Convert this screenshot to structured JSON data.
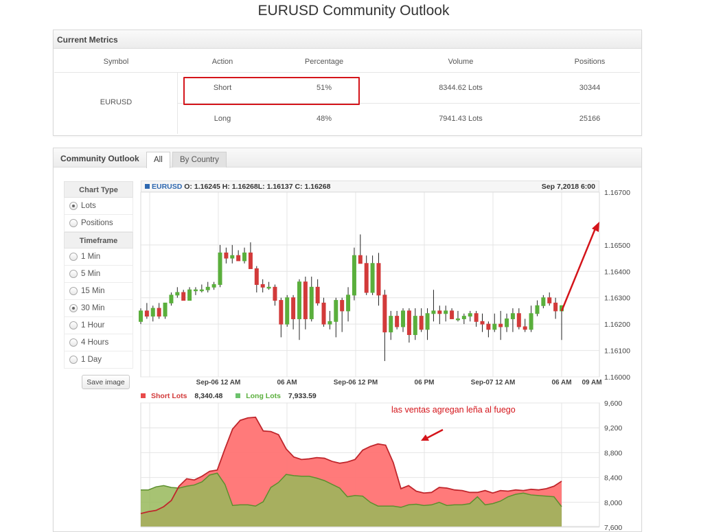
{
  "page": {
    "title": "EURUSD Community Outlook"
  },
  "metrics": {
    "header": "Current Metrics",
    "columns": [
      "Symbol",
      "Action",
      "Percentage",
      "Volume",
      "Positions"
    ],
    "symbol": "EURUSD",
    "rows": [
      {
        "action": "Short",
        "percentage": "51%",
        "volume": "8344.62 Lots",
        "positions": "30344"
      },
      {
        "action": "Long",
        "percentage": "48%",
        "volume": "7941.43 Lots",
        "positions": "25166"
      }
    ]
  },
  "outlook": {
    "title": "Community Outlook",
    "tabs": [
      "All",
      "By Country"
    ],
    "chart_type_label": "Chart Type",
    "chart_types": [
      {
        "label": "Lots",
        "selected": true
      },
      {
        "label": "Positions",
        "selected": false
      }
    ],
    "timeframe_label": "Timeframe",
    "timeframes": [
      {
        "label": "1 Min",
        "selected": false
      },
      {
        "label": "5 Min",
        "selected": false
      },
      {
        "label": "15 Min",
        "selected": false
      },
      {
        "label": "30 Min",
        "selected": true
      },
      {
        "label": "1 Hour",
        "selected": false
      },
      {
        "label": "4 Hours",
        "selected": false
      },
      {
        "label": "1 Day",
        "selected": false
      }
    ],
    "save_label": "Save image"
  },
  "price_legend": {
    "symbol": "EURUSD",
    "o_label": "O:",
    "o": "1.16245",
    "h_label": "H:",
    "h": "1.16268",
    "l_label": "L:",
    "l": "1.16137",
    "c_label": "C:",
    "c": "1.16268",
    "date": "Sep 7,2018 6:00"
  },
  "lots_legend": {
    "short_label": "Short Lots",
    "short_value": "8,340.48",
    "long_label": "Long Lots",
    "long_value": "7,933.59"
  },
  "annotation": "las ventas agregan leña al fuego",
  "colors": {
    "up": "#5aaf3c",
    "down": "#d23a3a",
    "short_fill": "#ff7373",
    "long_fill": "#98b85a",
    "arrow": "#d4141a",
    "legend_square": "#2e68b0"
  },
  "chart_data": [
    {
      "type": "candlestick",
      "series": [
        {
          "name": "EURUSD"
        }
      ],
      "ylim": [
        1.16,
        1.167
      ],
      "y_ticks": [
        "1.16700",
        "1.16500",
        "1.16400",
        "1.16300",
        "1.16200",
        "1.16100",
        "1.16000"
      ],
      "x_ticks": [
        "Sep-06 12 AM",
        "06 AM",
        "Sep-06 12 PM",
        "06 PM",
        "Sep-07 12 AM",
        "06 AM",
        "09 AM"
      ],
      "candles": [
        [
          1.1621,
          1.1626,
          1.162,
          1.1625
        ],
        [
          1.1625,
          1.1628,
          1.1622,
          1.1623
        ],
        [
          1.1623,
          1.1627,
          1.1621,
          1.1626
        ],
        [
          1.1626,
          1.1628,
          1.1622,
          1.1623
        ],
        [
          1.1623,
          1.1628,
          1.1622,
          1.1628
        ],
        [
          1.1628,
          1.1632,
          1.1627,
          1.1631
        ],
        [
          1.1631,
          1.1634,
          1.163,
          1.1632
        ],
        [
          1.1632,
          1.1633,
          1.1629,
          1.1629
        ],
        [
          1.1629,
          1.1634,
          1.1629,
          1.1633
        ],
        [
          1.1633,
          1.1634,
          1.1631,
          1.1633
        ],
        [
          1.1633,
          1.1635,
          1.1632,
          1.1633
        ],
        [
          1.1633,
          1.1636,
          1.1632,
          1.1634
        ],
        [
          1.1634,
          1.1636,
          1.1633,
          1.1635
        ],
        [
          1.1635,
          1.165,
          1.1634,
          1.1647
        ],
        [
          1.1647,
          1.1649,
          1.1643,
          1.1645
        ],
        [
          1.1645,
          1.165,
          1.1643,
          1.1646
        ],
        [
          1.1646,
          1.1648,
          1.1644,
          1.1644
        ],
        [
          1.1644,
          1.1649,
          1.1643,
          1.1647
        ],
        [
          1.1647,
          1.1651,
          1.1641,
          1.1641
        ],
        [
          1.1641,
          1.1642,
          1.1632,
          1.1635
        ],
        [
          1.1635,
          1.1637,
          1.1632,
          1.1634
        ],
        [
          1.1634,
          1.1636,
          1.1633,
          1.1634
        ],
        [
          1.1634,
          1.1635,
          1.1627,
          1.1629
        ],
        [
          1.1629,
          1.163,
          1.1615,
          1.162
        ],
        [
          1.162,
          1.1631,
          1.1619,
          1.163
        ],
        [
          1.163,
          1.1631,
          1.1618,
          1.1622
        ],
        [
          1.1622,
          1.1637,
          1.1614,
          1.1636
        ],
        [
          1.1636,
          1.1638,
          1.1618,
          1.1622
        ],
        [
          1.1622,
          1.1638,
          1.1621,
          1.1634
        ],
        [
          1.1634,
          1.1637,
          1.1627,
          1.1628
        ],
        [
          1.1628,
          1.163,
          1.1619,
          1.162
        ],
        [
          1.162,
          1.1625,
          1.1618,
          1.1621
        ],
        [
          1.1621,
          1.163,
          1.1615,
          1.1629
        ],
        [
          1.1629,
          1.163,
          1.1617,
          1.1625
        ],
        [
          1.1625,
          1.1634,
          1.1621,
          1.1631
        ],
        [
          1.1631,
          1.1649,
          1.1629,
          1.1646
        ],
        [
          1.1646,
          1.1654,
          1.1643,
          1.1643
        ],
        [
          1.1643,
          1.1646,
          1.1631,
          1.1632
        ],
        [
          1.1632,
          1.1646,
          1.1631,
          1.1643
        ],
        [
          1.1643,
          1.1647,
          1.1627,
          1.1631
        ],
        [
          1.1631,
          1.1633,
          1.1606,
          1.1617
        ],
        [
          1.1617,
          1.1625,
          1.1614,
          1.1623
        ],
        [
          1.1623,
          1.1625,
          1.1618,
          1.1619
        ],
        [
          1.1619,
          1.1626,
          1.1617,
          1.1625
        ],
        [
          1.1625,
          1.1626,
          1.1613,
          1.1616
        ],
        [
          1.1616,
          1.1626,
          1.1614,
          1.1623
        ],
        [
          1.1623,
          1.1626,
          1.1617,
          1.1618
        ],
        [
          1.1618,
          1.1626,
          1.1614,
          1.1624
        ],
        [
          1.1624,
          1.1633,
          1.1621,
          1.1625
        ],
        [
          1.1625,
          1.1627,
          1.162,
          1.1624
        ],
        [
          1.1624,
          1.1627,
          1.1621,
          1.1625
        ],
        [
          1.1625,
          1.1626,
          1.1622,
          1.1622
        ],
        [
          1.1622,
          1.1625,
          1.1621,
          1.1622
        ],
        [
          1.1622,
          1.1624,
          1.162,
          1.1623
        ],
        [
          1.1623,
          1.1625,
          1.1621,
          1.1624
        ],
        [
          1.1624,
          1.1625,
          1.1619,
          1.1621
        ],
        [
          1.1621,
          1.1624,
          1.1617,
          1.162
        ],
        [
          1.162,
          1.1621,
          1.1615,
          1.1618
        ],
        [
          1.1618,
          1.1624,
          1.1617,
          1.162
        ],
        [
          1.162,
          1.1625,
          1.1614,
          1.1619
        ],
        [
          1.1619,
          1.1624,
          1.1617,
          1.1622
        ],
        [
          1.1622,
          1.1626,
          1.1617,
          1.1624
        ],
        [
          1.1624,
          1.1626,
          1.1618,
          1.1619
        ],
        [
          1.1619,
          1.1622,
          1.1617,
          1.1618
        ],
        [
          1.1618,
          1.1627,
          1.1617,
          1.1624
        ],
        [
          1.1624,
          1.1629,
          1.1623,
          1.1627
        ],
        [
          1.1627,
          1.1631,
          1.1626,
          1.163
        ],
        [
          1.163,
          1.1632,
          1.1627,
          1.1628
        ],
        [
          1.1628,
          1.163,
          1.1622,
          1.1625
        ],
        [
          1.1625,
          1.1627,
          1.1614,
          1.1627
        ]
      ]
    },
    {
      "type": "area",
      "ylim": [
        7600,
        9600
      ],
      "y_ticks": [
        "9,600",
        "9,200",
        "8,800",
        "8,400",
        "8,000",
        "7,600"
      ],
      "series": [
        {
          "name": "Short Lots",
          "values": [
            7820,
            7850,
            7870,
            7930,
            8030,
            8260,
            8380,
            8360,
            8420,
            8500,
            8520,
            8860,
            9180,
            9320,
            9360,
            9370,
            9150,
            9140,
            9090,
            8860,
            8730,
            8690,
            8700,
            8720,
            8710,
            8660,
            8630,
            8650,
            8690,
            8840,
            8900,
            8940,
            8920,
            8640,
            8220,
            8270,
            8180,
            8150,
            8160,
            8240,
            8230,
            8200,
            8190,
            8160,
            8160,
            8190,
            8150,
            8190,
            8180,
            8200,
            8190,
            8210,
            8200,
            8220,
            8260,
            8340
          ]
        },
        {
          "name": "Long Lots",
          "values": [
            8200,
            8200,
            8250,
            8270,
            8240,
            8230,
            8260,
            8280,
            8330,
            8440,
            8470,
            8290,
            7950,
            7960,
            7960,
            7940,
            8010,
            8240,
            8320,
            8450,
            8430,
            8420,
            8420,
            8390,
            8350,
            8290,
            8230,
            8090,
            8110,
            8100,
            8000,
            7940,
            7940,
            7940,
            7920,
            7960,
            7970,
            7950,
            7960,
            8000,
            7950,
            7960,
            7960,
            7980,
            8090,
            7960,
            7980,
            8020,
            8090,
            8130,
            8150,
            8120,
            8110,
            8100,
            8090,
            7930
          ]
        }
      ]
    }
  ]
}
